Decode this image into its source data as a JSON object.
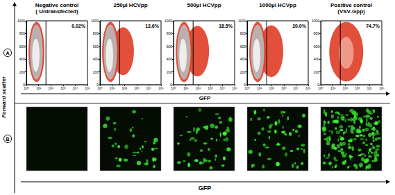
{
  "figure": {
    "y_label": "Forward scatter",
    "x_labels": [
      "GFP",
      "GFP"
    ],
    "panel_labels": [
      "A",
      "B"
    ]
  },
  "chart_data": [
    {
      "type": "scatter",
      "title": "Negative control\n( Untransfected)",
      "gated": {
        "value": 0.02,
        "label": "0.02%"
      },
      "gate": 40,
      "log": "x",
      "xlim": [
        1,
        100000
      ],
      "xticks": [
        {
          "value": 1,
          "label": "10⁰"
        },
        {
          "value": 10,
          "label": "10¹"
        },
        {
          "value": 100,
          "label": "10²"
        },
        {
          "value": 1000,
          "label": "10³"
        },
        {
          "value": 10000,
          "label": "10⁴"
        },
        {
          "value": 100000,
          "label": "10⁵"
        }
      ],
      "ylim": [
        0,
        1000
      ],
      "yticks": [
        0,
        200,
        400,
        600,
        800,
        1000
      ],
      "grid": false,
      "populations": [
        {
          "x": [
            1.5,
            30
          ],
          "y": [
            40,
            985
          ],
          "color": "#e0402a"
        },
        {
          "x": [
            2,
            22
          ],
          "y": [
            80,
            940
          ],
          "color": "#b9b9b9"
        },
        {
          "x": [
            3,
            12
          ],
          "y": [
            200,
            720
          ],
          "color": "#f2f2f2"
        }
      ]
    },
    {
      "type": "scatter",
      "title": "250µl HCVpp",
      "gated": {
        "value": 13.6,
        "label": "13.6%"
      },
      "gate": 40,
      "log": "x",
      "xlim": [
        1,
        100000
      ],
      "xticks": [
        {
          "value": 1,
          "label": "10⁰"
        },
        {
          "value": 10,
          "label": "10¹"
        },
        {
          "value": 100,
          "label": "10²"
        },
        {
          "value": 1000,
          "label": "10³"
        },
        {
          "value": 10000,
          "label": "10⁴"
        },
        {
          "value": 100000,
          "label": "10⁵"
        }
      ],
      "ylim": [
        0,
        1000
      ],
      "yticks": [
        0,
        200,
        400,
        600,
        800,
        1000
      ],
      "grid": false,
      "populations": [
        {
          "x": [
            10,
            600
          ],
          "y": [
            150,
            900
          ],
          "color": "#e0402a"
        },
        {
          "x": [
            1.5,
            35
          ],
          "y": [
            40,
            985
          ],
          "color": "#e0402a"
        },
        {
          "x": [
            2,
            25
          ],
          "y": [
            80,
            940
          ],
          "color": "#b9b9b9"
        },
        {
          "x": [
            3,
            12
          ],
          "y": [
            200,
            720
          ],
          "color": "#f2f2f2"
        }
      ]
    },
    {
      "type": "scatter",
      "title": "500µl HCVpp",
      "gated": {
        "value": 18.5,
        "label": "18.5%"
      },
      "gate": 40,
      "log": "x",
      "xlim": [
        1,
        100000
      ],
      "xticks": [
        {
          "value": 1,
          "label": "10⁰"
        },
        {
          "value": 10,
          "label": "10¹"
        },
        {
          "value": 100,
          "label": "10²"
        },
        {
          "value": 1000,
          "label": "10³"
        },
        {
          "value": 10000,
          "label": "10⁴"
        },
        {
          "value": 100000,
          "label": "10⁵"
        }
      ],
      "ylim": [
        0,
        1000
      ],
      "yticks": [
        0,
        200,
        400,
        600,
        800,
        1000
      ],
      "grid": false,
      "populations": [
        {
          "x": [
            10,
            800
          ],
          "y": [
            130,
            920
          ],
          "color": "#e0402a"
        },
        {
          "x": [
            1.5,
            35
          ],
          "y": [
            40,
            985
          ],
          "color": "#e0402a"
        },
        {
          "x": [
            2,
            25
          ],
          "y": [
            80,
            940
          ],
          "color": "#b9b9b9"
        },
        {
          "x": [
            3,
            12
          ],
          "y": [
            200,
            720
          ],
          "color": "#f2f2f2"
        }
      ]
    },
    {
      "type": "scatter",
      "title": "1000µl HCVpp",
      "gated": {
        "value": 20.0,
        "label": "20.0%"
      },
      "gate": 40,
      "log": "x",
      "xlim": [
        1,
        100000
      ],
      "xticks": [
        {
          "value": 1,
          "label": "10⁰"
        },
        {
          "value": 10,
          "label": "10¹"
        },
        {
          "value": 100,
          "label": "10²"
        },
        {
          "value": 1000,
          "label": "10³"
        },
        {
          "value": 10000,
          "label": "10⁴"
        },
        {
          "value": 100000,
          "label": "10⁵"
        }
      ],
      "ylim": [
        0,
        1000
      ],
      "yticks": [
        0,
        200,
        400,
        600,
        800,
        1000
      ],
      "grid": false,
      "populations": [
        {
          "x": [
            10,
            900
          ],
          "y": [
            120,
            930
          ],
          "color": "#e0402a"
        },
        {
          "x": [
            1.5,
            35
          ],
          "y": [
            40,
            985
          ],
          "color": "#e0402a"
        },
        {
          "x": [
            2,
            25
          ],
          "y": [
            80,
            940
          ],
          "color": "#b9b9b9"
        },
        {
          "x": [
            3,
            12
          ],
          "y": [
            200,
            720
          ],
          "color": "#f2f2f2"
        }
      ]
    },
    {
      "type": "scatter",
      "title": "Positive control\n(VSV-Gpp)",
      "gated": {
        "value": 74.7,
        "label": "74.7%"
      },
      "gate": 40,
      "log": "x",
      "xlim": [
        1,
        100000
      ],
      "xticks": [
        {
          "value": 1,
          "label": "10⁰"
        },
        {
          "value": 10,
          "label": "10¹"
        },
        {
          "value": 100,
          "label": "10²"
        },
        {
          "value": 1000,
          "label": "10³"
        },
        {
          "value": 10000,
          "label": "10⁴"
        },
        {
          "value": 100000,
          "label": "10⁵"
        }
      ],
      "ylim": [
        0,
        1000
      ],
      "yticks": [
        0,
        200,
        400,
        600,
        800,
        1000
      ],
      "grid": false,
      "populations": [
        {
          "x": [
            5,
            3000
          ],
          "y": [
            50,
            980
          ],
          "color": "#e0402a"
        },
        {
          "x": [
            30,
            500
          ],
          "y": [
            250,
            750
          ],
          "color": "#f0a090"
        }
      ]
    }
  ]
}
